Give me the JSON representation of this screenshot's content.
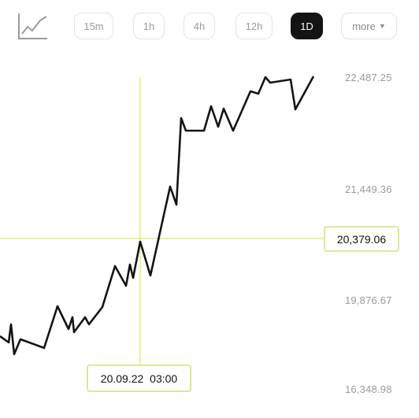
{
  "toolbar": {
    "chart_type_icon": "line-chart-icon",
    "timeframes": [
      "15m",
      "1h",
      "4h",
      "12h",
      "1D"
    ],
    "active_timeframe": "1D",
    "more_label": "more",
    "more_icon": "caret-down-icon"
  },
  "price_axis": {
    "labels": [
      "22,487.25",
      "21,449.36",
      "19,876.67",
      "16,348.98"
    ]
  },
  "crosshair": {
    "price_label": "20,379.06",
    "time_label": "20.09.22 03:00",
    "color": "#e3ef7a"
  },
  "colors": {
    "line": "#141414",
    "active_button_bg": "#141414",
    "crosshair": "#e3ef7a"
  }
}
